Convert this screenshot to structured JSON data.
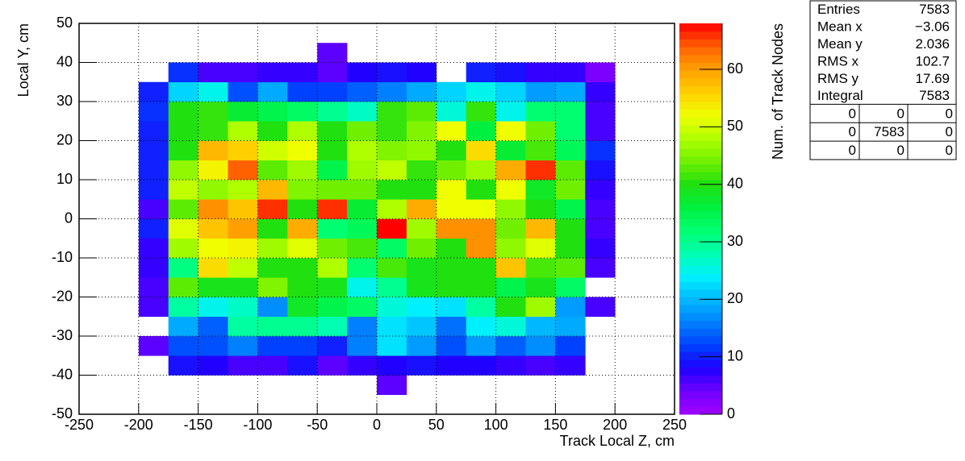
{
  "chart_data": {
    "type": "heatmap",
    "x_label": "Track Local Z, cm",
    "y_label": "Local Y, cm",
    "z_label": "Num. of Track Nodes",
    "xbins": [
      -200,
      -175,
      -150,
      -125,
      -100,
      -75,
      -50,
      -25,
      0,
      25,
      50,
      75,
      100,
      125,
      150,
      175,
      200
    ],
    "ybins": [
      -45,
      -40,
      -35,
      -30,
      -25,
      -20,
      -15,
      -10,
      -5,
      0,
      5,
      10,
      15,
      20,
      25,
      30,
      35,
      40,
      45
    ],
    "z": [
      [
        null,
        null,
        null,
        null,
        null,
        null,
        null,
        null,
        5,
        null,
        null,
        null,
        null,
        null,
        null,
        null
      ],
      [
        null,
        9,
        8,
        6,
        6,
        9,
        5,
        7,
        8,
        9,
        8,
        8,
        7,
        6,
        7,
        null
      ],
      [
        5,
        13,
        13,
        16,
        12,
        12,
        10,
        16,
        23,
        18,
        13,
        18,
        14,
        17,
        12,
        null
      ],
      [
        null,
        19,
        14,
        29,
        30,
        30,
        28,
        16,
        23,
        21,
        15,
        24,
        26,
        20,
        19,
        null
      ],
      [
        6,
        29,
        25,
        27,
        17,
        38,
        35,
        33,
        26,
        24,
        23,
        29,
        40,
        47,
        18,
        6
      ],
      [
        6,
        43,
        39,
        39,
        45,
        40,
        39,
        25,
        30,
        39,
        40,
        40,
        35,
        39,
        33,
        null
      ],
      [
        7,
        31,
        55,
        49,
        40,
        40,
        48,
        32,
        42,
        39,
        40,
        40,
        57,
        42,
        43,
        6
      ],
      [
        7,
        47,
        52,
        53,
        47,
        51,
        44,
        42,
        33,
        44,
        40,
        61,
        46,
        51,
        40,
        7
      ],
      [
        10,
        51,
        57,
        60,
        40,
        59,
        32,
        34,
        68,
        47,
        61,
        61,
        44,
        58,
        40,
        6
      ],
      [
        6,
        43,
        61,
        57,
        66,
        40,
        66,
        37,
        48,
        59,
        52,
        52,
        46,
        40,
        35,
        6
      ],
      [
        10,
        49,
        46,
        48,
        58,
        45,
        44,
        44,
        40,
        40,
        52,
        40,
        52,
        38,
        44,
        7
      ],
      [
        10,
        46,
        53,
        64,
        43,
        47,
        35,
        47,
        49,
        41,
        44,
        47,
        59,
        66,
        43,
        9
      ],
      [
        10,
        40,
        58,
        56,
        50,
        52,
        40,
        48,
        45,
        46,
        40,
        55,
        37,
        42,
        34,
        11
      ],
      [
        10,
        40,
        41,
        48,
        40,
        48,
        40,
        44,
        41,
        45,
        52,
        36,
        52,
        44,
        32,
        6
      ],
      [
        11,
        40,
        41,
        37,
        35,
        33,
        30,
        27,
        41,
        43,
        26,
        41,
        25,
        32,
        32,
        6
      ],
      [
        10,
        22,
        25,
        13,
        19,
        12,
        12,
        14,
        16,
        19,
        22,
        25,
        22,
        18,
        19,
        7
      ],
      [
        null,
        11,
        6,
        6,
        7,
        7,
        5,
        8,
        9,
        8,
        null,
        10,
        9,
        7,
        7,
        3
      ],
      [
        null,
        null,
        null,
        null,
        null,
        null,
        5,
        null,
        null,
        null,
        null,
        null,
        null,
        null,
        null,
        null
      ]
    ],
    "xlim": [
      -250,
      250
    ],
    "ylim": [
      -50,
      50
    ],
    "zlim": [
      0,
      68
    ],
    "xticks": [
      -250,
      -200,
      -150,
      -100,
      -50,
      0,
      50,
      100,
      150,
      200,
      250
    ],
    "yticks": [
      -50,
      -40,
      -30,
      -20,
      -10,
      0,
      10,
      20,
      30,
      40,
      50
    ],
    "zticks": [
      0,
      10,
      20,
      30,
      40,
      50,
      60
    ],
    "grid": true,
    "palette": [
      "#a000ff",
      "#7000ff",
      "#2000ff",
      "#0040ff",
      "#0080ff",
      "#00b8ff",
      "#00f0ff",
      "#00ffb0",
      "#00ff70",
      "#00f040",
      "#20e010",
      "#70f000",
      "#b0ff00",
      "#f0ff00",
      "#ffd000",
      "#ffa000",
      "#ff6000",
      "#ff0000"
    ]
  },
  "stats": {
    "rows": [
      {
        "name": "Entries",
        "value": "7583"
      },
      {
        "name": "Mean x",
        "value": "−3.06"
      },
      {
        "name": "Mean y",
        "value": "2.036"
      },
      {
        "name": "RMS x",
        "value": "102.7"
      },
      {
        "name": "RMS y",
        "value": "17.69"
      },
      {
        "name": "Integral",
        "value": "7583"
      }
    ],
    "table": [
      [
        "0",
        "0",
        "0"
      ],
      [
        "0",
        "7583",
        "0"
      ],
      [
        "0",
        "0",
        "0"
      ]
    ]
  }
}
